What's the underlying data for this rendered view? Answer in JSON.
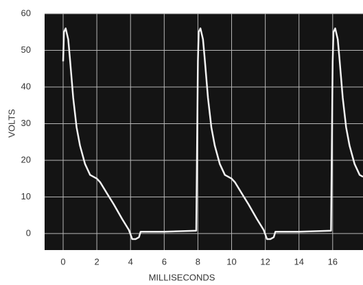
{
  "chart_data": {
    "type": "line",
    "xlabel": "MILLISECONDS",
    "ylabel": "VOLTS",
    "series": [
      {
        "color": "#f2f2f2",
        "x": [
          0,
          0.05,
          0.15,
          0.3,
          0.4,
          0.6,
          0.8,
          1,
          1.3,
          1.6,
          2,
          2.2,
          2.6,
          3,
          3.5,
          3.9,
          4.1,
          4.3,
          4.5,
          4.6,
          6,
          7.9,
          8,
          8.05,
          8.15,
          8.3,
          8.4,
          8.6,
          8.8,
          9,
          9.3,
          9.6,
          10,
          10.2,
          10.6,
          11,
          11.5,
          11.9,
          12.1,
          12.3,
          12.5,
          12.6,
          14,
          15.9,
          16,
          16.05,
          16.15,
          16.3,
          16.4,
          16.6,
          16.8,
          17,
          17.3,
          17.6,
          17.8
        ],
        "values": [
          47,
          55,
          56,
          53,
          48,
          37,
          29,
          24,
          19,
          16,
          15,
          14,
          11,
          8,
          4,
          1,
          -1.5,
          -1.5,
          -1,
          0.5,
          0.5,
          0.8,
          47,
          55,
          56,
          53,
          48,
          37,
          29,
          24,
          19,
          16,
          15,
          14,
          11,
          8,
          4,
          1,
          -1.5,
          -1.5,
          -1,
          0.5,
          0.5,
          0.8,
          47,
          55,
          56,
          53,
          48,
          37,
          29,
          24,
          19,
          16,
          15.5
        ]
      }
    ],
    "xlim": [
      -1.1,
      17.8
    ],
    "ylim": [
      -4.5,
      60
    ],
    "xticks": [
      0,
      2,
      4,
      6,
      8,
      10,
      12,
      14,
      16
    ],
    "yticks": [
      0,
      10,
      20,
      30,
      40,
      50,
      60
    ],
    "grid": true,
    "background": "#141414"
  }
}
